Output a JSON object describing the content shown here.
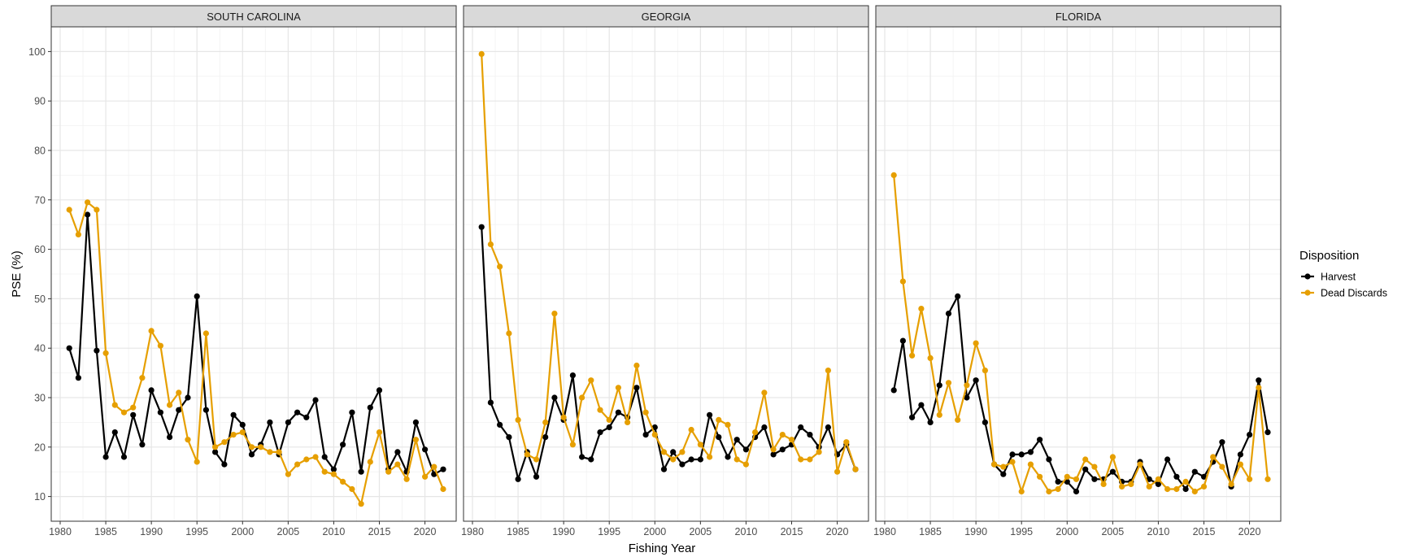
{
  "chart_data": {
    "type": "line",
    "xlabel": "Fishing Year",
    "ylabel": "PSE (%)",
    "xlim": [
      1980,
      2022
    ],
    "ylim": [
      5,
      105
    ],
    "x_ticks": [
      1980,
      1985,
      1990,
      1995,
      2000,
      2005,
      2010,
      2015,
      2020
    ],
    "y_ticks": [
      10,
      20,
      30,
      40,
      50,
      60,
      70,
      80,
      90,
      100
    ],
    "grid": true,
    "legend": {
      "title": "Disposition",
      "position": "right",
      "entries": [
        "Harvest",
        "Dead Discards"
      ]
    },
    "series_colors": {
      "Harvest": "#000000",
      "Dead Discards": "#E69F00"
    },
    "x": [
      1981,
      1982,
      1983,
      1984,
      1985,
      1986,
      1987,
      1988,
      1989,
      1990,
      1991,
      1992,
      1993,
      1994,
      1995,
      1996,
      1997,
      1998,
      1999,
      2000,
      2001,
      2002,
      2003,
      2004,
      2005,
      2006,
      2007,
      2008,
      2009,
      2010,
      2011,
      2012,
      2013,
      2014,
      2015,
      2016,
      2017,
      2018,
      2019,
      2020,
      2021,
      2022
    ],
    "panels": [
      {
        "strip": "SOUTH CAROLINA",
        "series": [
          {
            "name": "Harvest",
            "values": [
              40,
              34,
              67,
              39.5,
              18,
              23,
              18,
              26.5,
              20.5,
              31.5,
              27,
              22,
              27.5,
              30,
              50.5,
              27.5,
              19,
              16.5,
              26.5,
              24.5,
              18.5,
              20.5,
              25,
              18.5,
              25,
              27,
              26,
              29.5,
              18,
              15.5,
              20.5,
              27,
              15,
              28,
              31.5,
              15.5,
              19,
              15,
              25,
              19.5,
              14.5,
              15.5
            ]
          },
          {
            "name": "Dead Discards",
            "values": [
              68,
              63,
              69.5,
              68,
              39,
              28.5,
              27,
              28,
              34,
              43.5,
              40.5,
              28.5,
              31,
              21.5,
              17,
              43,
              20,
              21,
              22.5,
              23,
              20,
              20,
              19,
              19,
              14.5,
              16.5,
              17.5,
              18,
              15,
              14.5,
              13,
              11.5,
              8.5,
              17,
              23,
              15,
              16.5,
              13.5,
              21.5,
              14,
              16,
              11.5
            ]
          }
        ]
      },
      {
        "strip": "GEORGIA",
        "series": [
          {
            "name": "Harvest",
            "values": [
              64.5,
              29,
              24.5,
              22,
              13.5,
              19,
              14,
              22,
              30,
              25.5,
              34.5,
              18,
              17.5,
              23,
              24,
              27,
              26,
              32,
              22.5,
              24,
              15.5,
              19,
              16.5,
              17.5,
              17.5,
              26.5,
              22,
              18,
              21.5,
              19.5,
              22,
              24,
              18.5,
              19.5,
              20.5,
              24,
              22.5,
              20,
              24,
              18.5,
              20.5,
              15.5
            ]
          },
          {
            "name": "Dead Discards",
            "values": [
              99.5,
              61,
              56.5,
              43,
              25.5,
              18.5,
              17.5,
              25,
              47,
              26,
              20.5,
              30,
              33.5,
              27.5,
              25.5,
              32,
              25,
              36.5,
              27,
              22.5,
              19,
              17.5,
              19,
              23.5,
              20.5,
              18,
              25.5,
              24.5,
              17.5,
              16.5,
              23,
              31,
              19.5,
              22.5,
              21.5,
              17.5,
              17.5,
              19,
              35.5,
              15,
              21,
              15.5
            ]
          }
        ]
      },
      {
        "strip": "FLORIDA",
        "series": [
          {
            "name": "Harvest",
            "values": [
              31.5,
              41.5,
              26,
              28.5,
              25,
              32.5,
              47,
              50.5,
              30,
              33.5,
              25,
              16.5,
              14.5,
              18.5,
              18.5,
              19,
              21.5,
              17.5,
              13,
              13,
              11,
              15.5,
              13.5,
              13.5,
              15,
              13,
              13,
              17,
              13.5,
              12.5,
              17.5,
              14,
              11.5,
              15,
              14,
              17,
              21,
              12,
              18.5,
              22.5,
              33.5,
              23
            ]
          },
          {
            "name": "Dead Discards",
            "values": [
              75,
              53.5,
              38.5,
              48,
              38,
              26.5,
              33,
              25.5,
              32.5,
              41,
              35.5,
              16.5,
              16,
              17,
              11,
              16.5,
              14,
              11,
              11.5,
              14,
              13.5,
              17.5,
              16,
              12.5,
              18,
              12,
              12.5,
              16.5,
              12,
              13.5,
              11.5,
              11.5,
              13,
              11,
              12,
              18,
              16,
              12.5,
              16.5,
              13.5,
              32,
              13.5
            ]
          }
        ]
      }
    ]
  }
}
